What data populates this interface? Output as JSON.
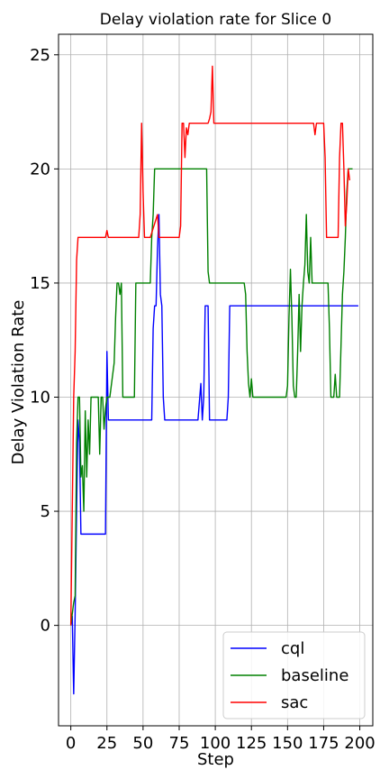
{
  "chart_data": {
    "type": "line",
    "title": "Delay violation rate for Slice 0",
    "xlabel": "Step",
    "ylabel": "Delay Violation Rate",
    "xlim": [
      -8.5,
      209
    ],
    "ylim": [
      -4.4,
      25.9
    ],
    "xticks": [
      0,
      25,
      50,
      75,
      100,
      125,
      150,
      175,
      200
    ],
    "yticks": [
      0,
      5,
      10,
      15,
      20,
      25
    ],
    "grid": true,
    "legend_position": "lower-right",
    "series": [
      {
        "name": "cql",
        "color": "#0000ff",
        "points": [
          [
            0,
            0
          ],
          [
            1,
            0.4
          ],
          [
            2,
            -3
          ],
          [
            3,
            0.5
          ],
          [
            4,
            5
          ],
          [
            5,
            9
          ],
          [
            6,
            8
          ],
          [
            7,
            4
          ],
          [
            8,
            4
          ],
          [
            10,
            4
          ],
          [
            15,
            4
          ],
          [
            20,
            4
          ],
          [
            24,
            4
          ],
          [
            25,
            12
          ],
          [
            26,
            9
          ],
          [
            28,
            9
          ],
          [
            30,
            9
          ],
          [
            40,
            9
          ],
          [
            50,
            9
          ],
          [
            56,
            9
          ],
          [
            57,
            13
          ],
          [
            58,
            14
          ],
          [
            59,
            14
          ],
          [
            60,
            16.5
          ],
          [
            61,
            18
          ],
          [
            62,
            14.5
          ],
          [
            63,
            14
          ],
          [
            64,
            10
          ],
          [
            65,
            9
          ],
          [
            70,
            9
          ],
          [
            80,
            9
          ],
          [
            88,
            9
          ],
          [
            90,
            10.6
          ],
          [
            91,
            9
          ],
          [
            92,
            10
          ],
          [
            93,
            14
          ],
          [
            95,
            14
          ],
          [
            96,
            9
          ],
          [
            100,
            9
          ],
          [
            108,
            9
          ],
          [
            109,
            10
          ],
          [
            110,
            14
          ],
          [
            120,
            14
          ],
          [
            150,
            14
          ],
          [
            199,
            14
          ]
        ]
      },
      {
        "name": "baseline",
        "color": "#008000",
        "points": [
          [
            0,
            0
          ],
          [
            1,
            0.5
          ],
          [
            2,
            1
          ],
          [
            3,
            1.3
          ],
          [
            4,
            8
          ],
          [
            5,
            10
          ],
          [
            6,
            10
          ],
          [
            7,
            6.5
          ],
          [
            8,
            7
          ],
          [
            9,
            5
          ],
          [
            10,
            9.4
          ],
          [
            11,
            6.5
          ],
          [
            12,
            9
          ],
          [
            13,
            7.5
          ],
          [
            14,
            10
          ],
          [
            16,
            10
          ],
          [
            18,
            10
          ],
          [
            19,
            10
          ],
          [
            20,
            7.5
          ],
          [
            21,
            10
          ],
          [
            22,
            10
          ],
          [
            23,
            8.6
          ],
          [
            24,
            9.5
          ],
          [
            25,
            10
          ],
          [
            27,
            10
          ],
          [
            29,
            11
          ],
          [
            30,
            11.5
          ],
          [
            31,
            13.5
          ],
          [
            32,
            15
          ],
          [
            33,
            15
          ],
          [
            34,
            14.5
          ],
          [
            35,
            15
          ],
          [
            36,
            10
          ],
          [
            40,
            10
          ],
          [
            44,
            10
          ],
          [
            45,
            15
          ],
          [
            50,
            15
          ],
          [
            55,
            15
          ],
          [
            56,
            17
          ],
          [
            57,
            18
          ],
          [
            58,
            20
          ],
          [
            60,
            20
          ],
          [
            70,
            20
          ],
          [
            80,
            20
          ],
          [
            90,
            20
          ],
          [
            94,
            20
          ],
          [
            95,
            15.5
          ],
          [
            96,
            15
          ],
          [
            100,
            15
          ],
          [
            110,
            15
          ],
          [
            120,
            15
          ],
          [
            121,
            14.5
          ],
          [
            122,
            12
          ],
          [
            123,
            10.6
          ],
          [
            124,
            10
          ],
          [
            125,
            10.8
          ],
          [
            126,
            10
          ],
          [
            130,
            10
          ],
          [
            140,
            10
          ],
          [
            149,
            10
          ],
          [
            150,
            10.5
          ],
          [
            151,
            13.5
          ],
          [
            152,
            15.6
          ],
          [
            153,
            13.5
          ],
          [
            154,
            10.5
          ],
          [
            155,
            10
          ],
          [
            156,
            10
          ],
          [
            157,
            12
          ],
          [
            158,
            14.5
          ],
          [
            159,
            12
          ],
          [
            160,
            14
          ],
          [
            161,
            15
          ],
          [
            162,
            15.8
          ],
          [
            163,
            18
          ],
          [
            164,
            15.5
          ],
          [
            165,
            15
          ],
          [
            166,
            17
          ],
          [
            167,
            15
          ],
          [
            168,
            15
          ],
          [
            170,
            15
          ],
          [
            175,
            15
          ],
          [
            178,
            15
          ],
          [
            179,
            13
          ],
          [
            180,
            10
          ],
          [
            182,
            10
          ],
          [
            183,
            11
          ],
          [
            184,
            10
          ],
          [
            186,
            10
          ],
          [
            188,
            14.5
          ],
          [
            189,
            15.5
          ],
          [
            190,
            17
          ],
          [
            191,
            19
          ],
          [
            192,
            20
          ],
          [
            195,
            20
          ]
        ]
      },
      {
        "name": "sac",
        "color": "#ff0000",
        "points": [
          [
            0,
            0
          ],
          [
            1,
            5
          ],
          [
            2,
            10
          ],
          [
            3,
            12
          ],
          [
            4,
            16
          ],
          [
            5,
            17
          ],
          [
            10,
            17
          ],
          [
            20,
            17
          ],
          [
            24,
            17
          ],
          [
            25,
            17.3
          ],
          [
            26,
            17
          ],
          [
            30,
            17
          ],
          [
            40,
            17
          ],
          [
            47,
            17
          ],
          [
            48,
            18
          ],
          [
            49,
            22
          ],
          [
            50,
            19
          ],
          [
            51,
            17
          ],
          [
            55,
            17
          ],
          [
            60,
            18
          ],
          [
            61,
            17
          ],
          [
            65,
            17
          ],
          [
            70,
            17
          ],
          [
            75,
            17
          ],
          [
            76,
            17.5
          ],
          [
            77,
            22
          ],
          [
            78,
            22
          ],
          [
            79,
            20.5
          ],
          [
            80,
            21.8
          ],
          [
            81,
            21.5
          ],
          [
            82,
            22
          ],
          [
            90,
            22
          ],
          [
            95,
            22
          ],
          [
            96,
            22.2
          ],
          [
            97,
            22.5
          ],
          [
            98,
            24.5
          ],
          [
            99,
            22
          ],
          [
            100,
            22
          ],
          [
            110,
            22
          ],
          [
            130,
            22
          ],
          [
            150,
            22
          ],
          [
            168,
            22
          ],
          [
            169,
            21.5
          ],
          [
            170,
            22
          ],
          [
            175,
            22
          ],
          [
            176,
            20.5
          ],
          [
            177,
            17
          ],
          [
            180,
            17
          ],
          [
            185,
            17
          ],
          [
            186,
            20.5
          ],
          [
            187,
            22
          ],
          [
            188,
            22
          ],
          [
            189,
            20
          ],
          [
            190,
            17.5
          ],
          [
            191,
            18.5
          ],
          [
            192,
            20
          ],
          [
            193,
            19.5
          ]
        ]
      }
    ]
  }
}
